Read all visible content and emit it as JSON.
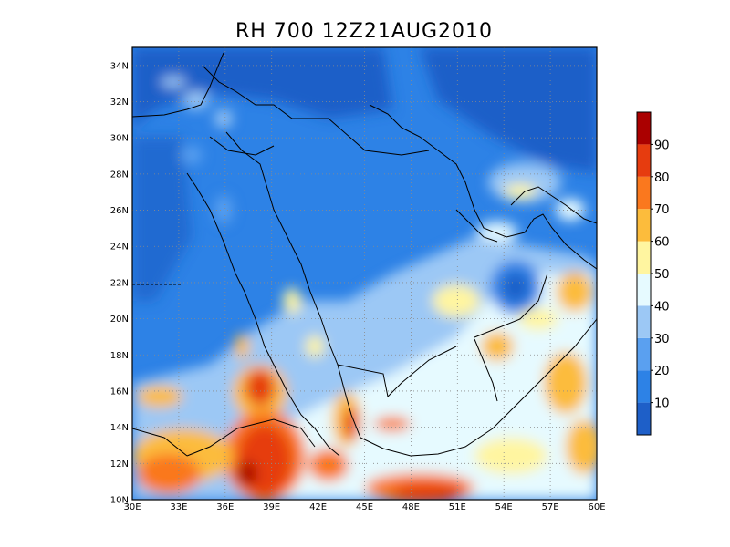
{
  "title": "RH 700 12Z21AUG2010",
  "map": {
    "lon_range": [
      30,
      60
    ],
    "lat_range": [
      10,
      35
    ],
    "x_ticks": [
      "30E",
      "33E",
      "36E",
      "39E",
      "42E",
      "45E",
      "48E",
      "51E",
      "54E",
      "57E",
      "60E"
    ],
    "y_ticks": [
      "10N",
      "12N",
      "14N",
      "16N",
      "18N",
      "20N",
      "22N",
      "24N",
      "26N",
      "28N",
      "30N",
      "32N",
      "34N"
    ],
    "grid": "dotted"
  },
  "colorbar": {
    "labels": [
      "10",
      "20",
      "30",
      "40",
      "50",
      "60",
      "70",
      "80",
      "90"
    ],
    "colors": [
      "#1e5fc8",
      "#2d82e6",
      "#5aa0f0",
      "#9cc8f5",
      "#e6faff",
      "#fff5a0",
      "#fcbc3c",
      "#fa781e",
      "#e63c0f",
      "#aa0000"
    ]
  }
}
